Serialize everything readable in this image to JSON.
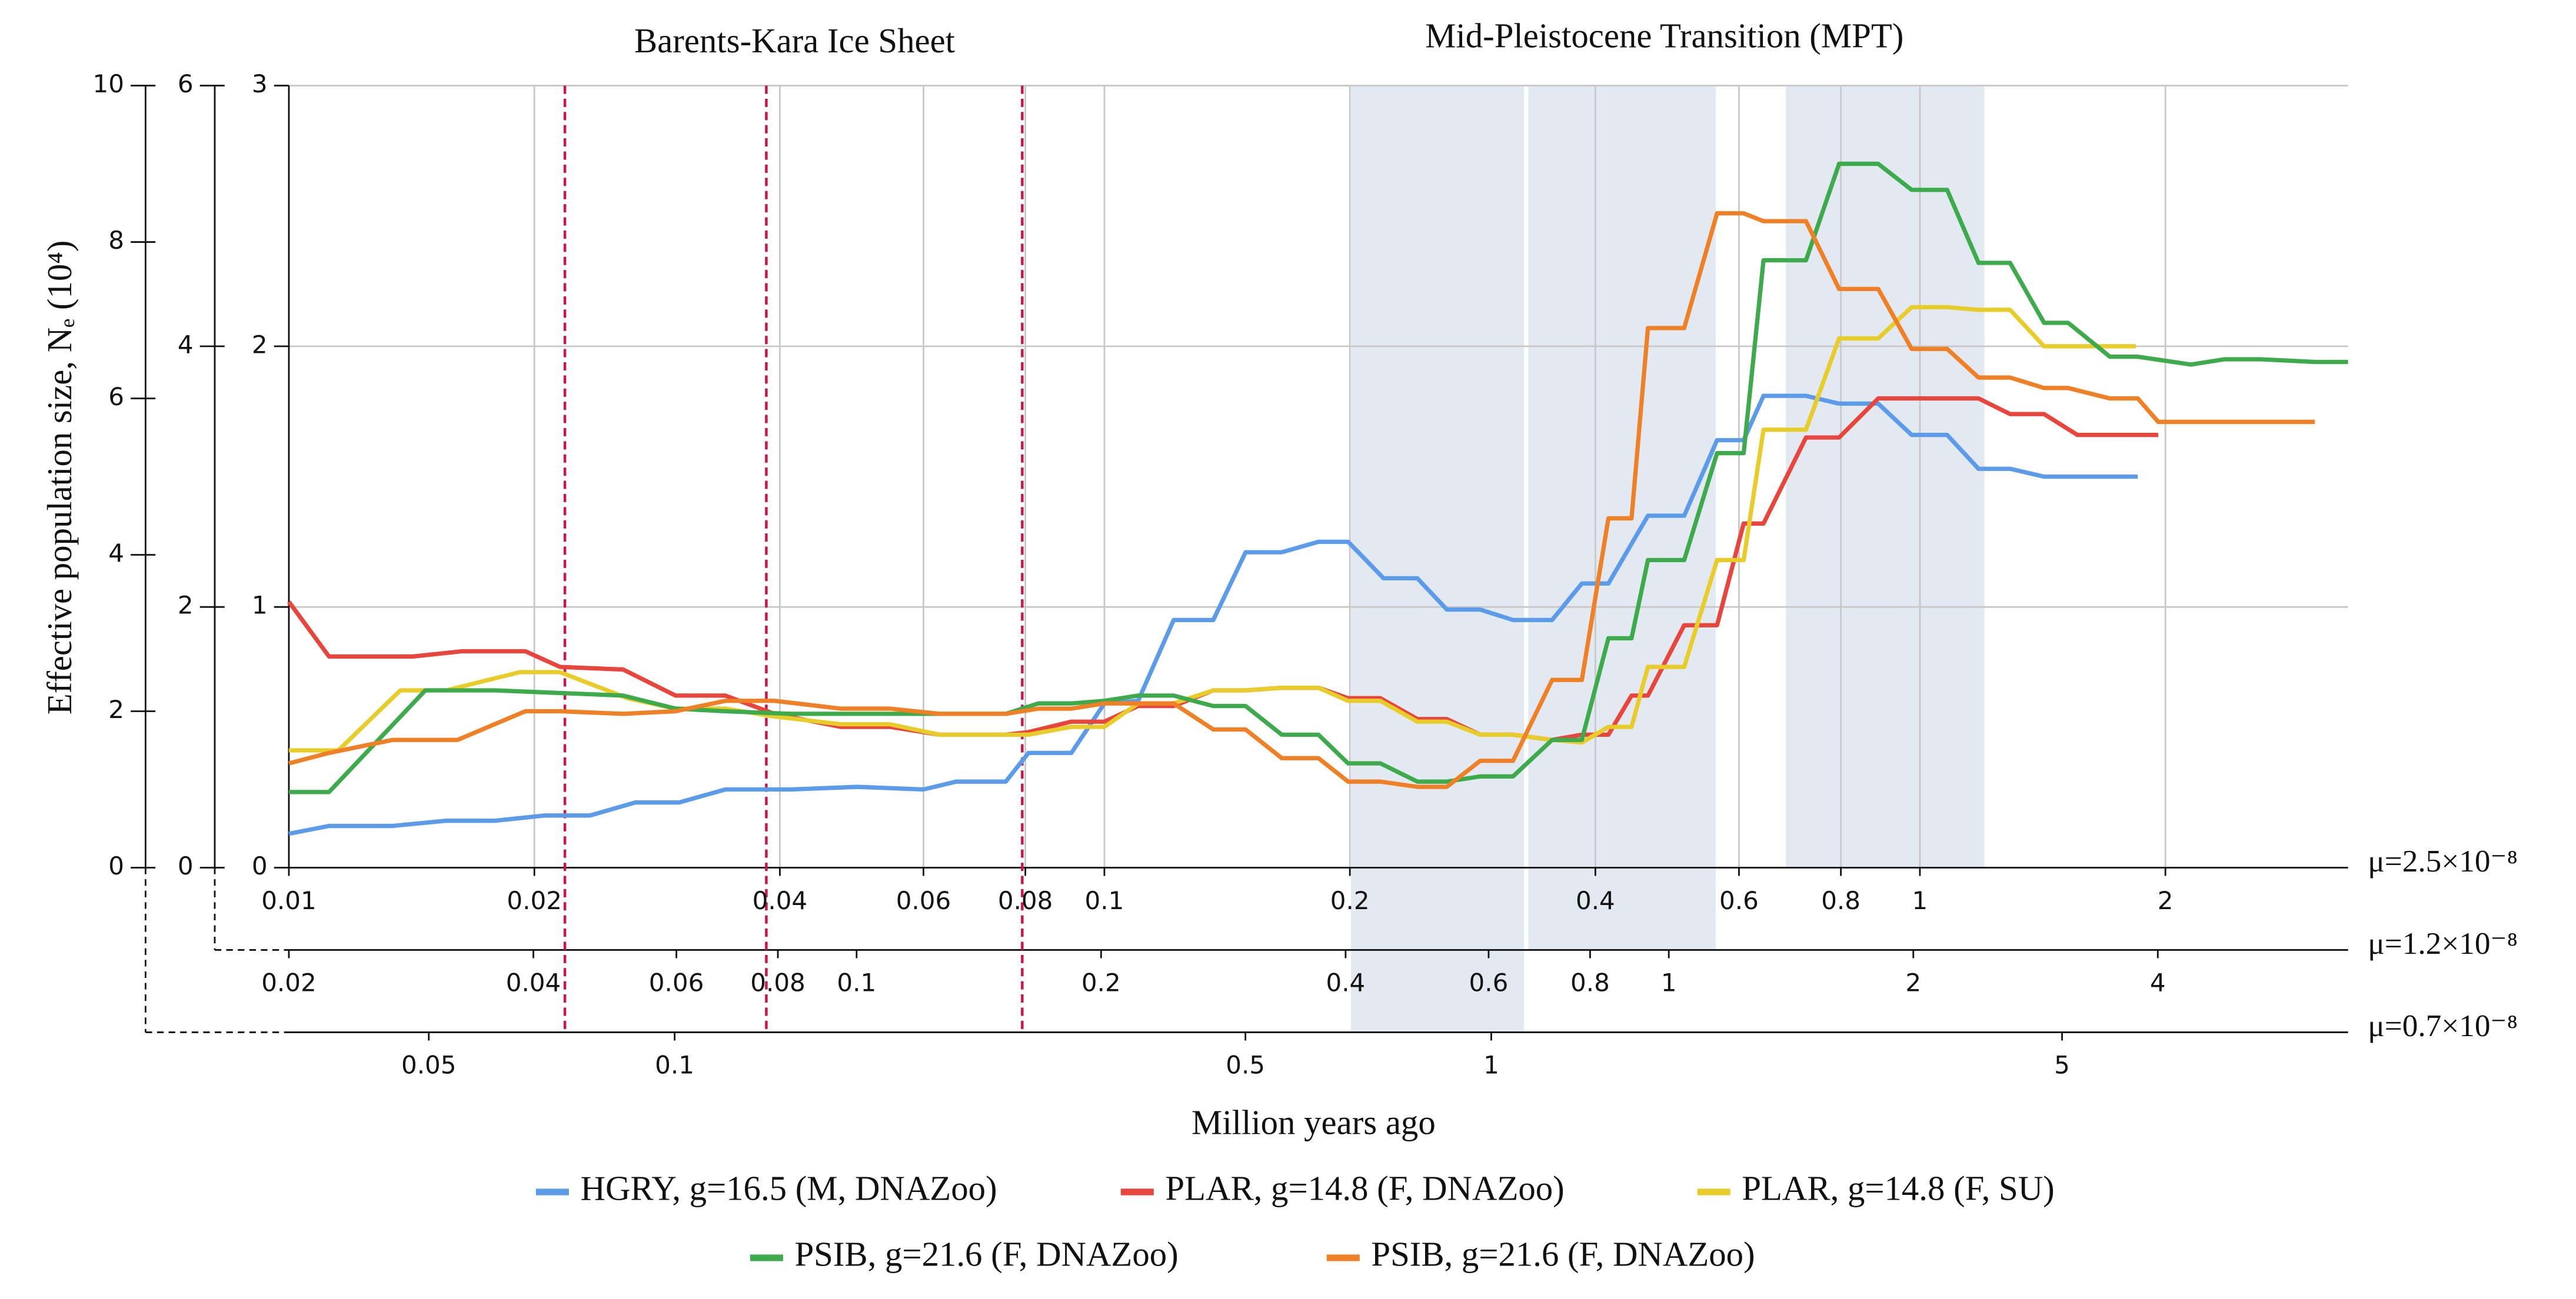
{
  "chart_data": {
    "type": "line",
    "xscale": "log",
    "grid": true,
    "annotations": [
      "Barents-Kara Ice Sheet",
      "Mid-Pleistocene Transition (MPT)"
    ],
    "xlabel": "Million years ago",
    "ylabel": "Effective population size, Nₑ (10⁴)",
    "x_axes": [
      {
        "label": "μ=2.5×10⁻⁸",
        "xlim": [
          0.01,
          3.35
        ],
        "xticks": [
          0.01,
          0.02,
          0.04,
          0.06,
          0.08,
          0.1,
          0.2,
          0.4,
          0.6,
          0.8,
          1,
          2
        ]
      },
      {
        "label": "μ=1.2×10⁻⁸",
        "xlim": [
          0.02,
          6.86
        ],
        "xticks": [
          0.02,
          0.04,
          0.06,
          0.08,
          0.1,
          0.2,
          0.4,
          0.6,
          0.8,
          1,
          2,
          4
        ]
      },
      {
        "label": "μ=0.7×10⁻⁸",
        "xlim": [
          0.0337,
          11.2
        ],
        "xticks": [
          0.05,
          0.1,
          0.5,
          1,
          5
        ]
      }
    ],
    "y_axes": [
      {
        "ylim": [
          0,
          3
        ],
        "yticks": [
          0,
          1,
          2,
          3
        ]
      },
      {
        "ylim": [
          0,
          6
        ],
        "yticks": [
          0,
          2,
          4,
          6
        ]
      },
      {
        "ylim": [
          0,
          10
        ],
        "yticks": [
          0,
          2,
          4,
          6,
          8,
          10
        ]
      }
    ],
    "bands": [
      [
        0.2006,
        0.327
      ],
      [
        0.331,
        0.562
      ],
      [
        0.685,
        1.2
      ]
    ],
    "band_color": "#e3e9f1",
    "vlines": [
      0.0218,
      0.0385,
      0.0793
    ],
    "vline_color": "#c8154a",
    "series": [
      {
        "name": "HGRY, g=16.5 (M, DNAZoo)",
        "color": "#5b9bea",
        "x": [
          0.01,
          0.0112,
          0.0134,
          0.0156,
          0.0179,
          0.0206,
          0.0234,
          0.0266,
          0.0301,
          0.0343,
          0.0413,
          0.0498,
          0.06,
          0.0658,
          0.0757,
          0.0807,
          0.0911,
          0.1,
          0.11,
          0.1216,
          0.136,
          0.149,
          0.165,
          0.183,
          0.199,
          0.22,
          0.242,
          0.263,
          0.289,
          0.317,
          0.354,
          0.385,
          0.415,
          0.464,
          0.514,
          0.564,
          0.608,
          0.643,
          0.725,
          0.796,
          0.889,
          0.977,
          1.08,
          1.18,
          1.29,
          1.42,
          1.85
        ],
        "values": [
          0.13,
          0.16,
          0.16,
          0.18,
          0.18,
          0.2,
          0.2,
          0.25,
          0.25,
          0.3,
          0.3,
          0.31,
          0.3,
          0.33,
          0.33,
          0.44,
          0.44,
          0.63,
          0.64,
          0.95,
          0.95,
          1.21,
          1.21,
          1.25,
          1.25,
          1.11,
          1.11,
          0.99,
          0.99,
          0.95,
          0.95,
          1.09,
          1.09,
          1.35,
          1.35,
          1.64,
          1.64,
          1.81,
          1.81,
          1.78,
          1.78,
          1.66,
          1.66,
          1.53,
          1.53,
          1.5,
          1.5
        ]
      },
      {
        "name": "PLAR, g=14.8 (F, DNAZoo)",
        "color": "#e8453c",
        "x": [
          0.01,
          0.0112,
          0.0142,
          0.0163,
          0.0195,
          0.0215,
          0.0257,
          0.0298,
          0.0343,
          0.0394,
          0.0475,
          0.0546,
          0.0628,
          0.0757,
          0.0807,
          0.0911,
          0.1,
          0.11,
          0.1216,
          0.136,
          0.149,
          0.165,
          0.183,
          0.199,
          0.218,
          0.242,
          0.263,
          0.289,
          0.317,
          0.354,
          0.385,
          0.415,
          0.443,
          0.464,
          0.514,
          0.564,
          0.608,
          0.643,
          0.725,
          0.796,
          0.889,
          0.977,
          1.08,
          1.18,
          1.29,
          1.42,
          1.56,
          1.96
        ],
        "values": [
          1.02,
          0.81,
          0.81,
          0.83,
          0.83,
          0.77,
          0.76,
          0.66,
          0.66,
          0.59,
          0.54,
          0.54,
          0.51,
          0.51,
          0.52,
          0.56,
          0.56,
          0.62,
          0.62,
          0.68,
          0.68,
          0.69,
          0.69,
          0.65,
          0.65,
          0.57,
          0.57,
          0.51,
          0.51,
          0.49,
          0.51,
          0.51,
          0.66,
          0.66,
          0.93,
          0.93,
          1.32,
          1.32,
          1.65,
          1.65,
          1.8,
          1.8,
          1.8,
          1.8,
          1.74,
          1.74,
          1.66,
          1.66
        ]
      },
      {
        "name": "PLAR, g=14.8 (F, SU)",
        "color": "#e8cc2a",
        "x": [
          0.01,
          0.0115,
          0.0137,
          0.0156,
          0.0192,
          0.0215,
          0.026,
          0.0298,
          0.0343,
          0.0394,
          0.0475,
          0.0546,
          0.0628,
          0.0757,
          0.0807,
          0.0911,
          0.1,
          0.11,
          0.1216,
          0.136,
          0.149,
          0.165,
          0.183,
          0.199,
          0.218,
          0.242,
          0.263,
          0.289,
          0.317,
          0.354,
          0.385,
          0.415,
          0.443,
          0.464,
          0.514,
          0.564,
          0.608,
          0.643,
          0.725,
          0.796,
          0.889,
          0.977,
          1.08,
          1.18,
          1.29,
          1.42,
          1.84
        ],
        "values": [
          0.45,
          0.45,
          0.68,
          0.68,
          0.75,
          0.75,
          0.65,
          0.61,
          0.61,
          0.58,
          0.55,
          0.55,
          0.51,
          0.51,
          0.51,
          0.54,
          0.54,
          0.63,
          0.63,
          0.68,
          0.68,
          0.69,
          0.69,
          0.64,
          0.64,
          0.56,
          0.56,
          0.51,
          0.51,
          0.49,
          0.48,
          0.54,
          0.54,
          0.77,
          0.77,
          1.18,
          1.18,
          1.68,
          1.68,
          2.03,
          2.03,
          2.15,
          2.15,
          2.14,
          2.14,
          2.0,
          2.0
        ]
      },
      {
        "name": "PSIB, g=21.6 (F, DNAZoo)",
        "color": "#3daa4c",
        "x": [
          0.01,
          0.0112,
          0.0147,
          0.0179,
          0.0215,
          0.0257,
          0.0298,
          0.0343,
          0.0413,
          0.0498,
          0.06,
          0.0757,
          0.083,
          0.0911,
          0.1,
          0.11,
          0.1216,
          0.136,
          0.149,
          0.165,
          0.183,
          0.199,
          0.218,
          0.242,
          0.263,
          0.289,
          0.317,
          0.354,
          0.385,
          0.415,
          0.443,
          0.464,
          0.514,
          0.564,
          0.608,
          0.643,
          0.725,
          0.796,
          0.889,
          0.977,
          1.08,
          1.18,
          1.29,
          1.42,
          1.52,
          1.71,
          1.85,
          2.15,
          2.36,
          2.62,
          3.05,
          3.35
        ],
        "values": [
          0.29,
          0.29,
          0.68,
          0.68,
          0.67,
          0.66,
          0.61,
          0.6,
          0.59,
          0.59,
          0.59,
          0.59,
          0.63,
          0.63,
          0.64,
          0.66,
          0.66,
          0.62,
          0.62,
          0.51,
          0.51,
          0.4,
          0.4,
          0.33,
          0.33,
          0.35,
          0.35,
          0.49,
          0.49,
          0.88,
          0.88,
          1.18,
          1.18,
          1.59,
          1.59,
          2.33,
          2.33,
          2.7,
          2.7,
          2.6,
          2.6,
          2.32,
          2.32,
          2.09,
          2.09,
          1.96,
          1.96,
          1.93,
          1.95,
          1.95,
          1.94,
          1.94
        ]
      },
      {
        "name": "PSIB, g=21.6 (F, DNAZoo)",
        "color": "#f08026",
        "x": [
          0.01,
          0.0112,
          0.0134,
          0.0161,
          0.0195,
          0.0215,
          0.0257,
          0.0298,
          0.0343,
          0.0394,
          0.0475,
          0.0546,
          0.0628,
          0.0757,
          0.083,
          0.0911,
          0.1,
          0.11,
          0.1216,
          0.136,
          0.149,
          0.165,
          0.183,
          0.199,
          0.218,
          0.242,
          0.263,
          0.289,
          0.317,
          0.354,
          0.385,
          0.415,
          0.443,
          0.464,
          0.514,
          0.564,
          0.608,
          0.643,
          0.725,
          0.796,
          0.889,
          0.977,
          1.08,
          1.18,
          1.29,
          1.42,
          1.52,
          1.71,
          1.85,
          1.96,
          2.36,
          3.05
        ],
        "values": [
          0.4,
          0.44,
          0.49,
          0.49,
          0.6,
          0.6,
          0.59,
          0.6,
          0.64,
          0.64,
          0.61,
          0.61,
          0.59,
          0.59,
          0.61,
          0.61,
          0.63,
          0.63,
          0.63,
          0.53,
          0.53,
          0.42,
          0.42,
          0.33,
          0.33,
          0.31,
          0.31,
          0.41,
          0.41,
          0.72,
          0.72,
          1.34,
          1.34,
          2.07,
          2.07,
          2.51,
          2.51,
          2.48,
          2.48,
          2.22,
          2.22,
          1.99,
          1.99,
          1.88,
          1.88,
          1.84,
          1.84,
          1.8,
          1.8,
          1.71,
          1.71,
          1.71
        ]
      }
    ]
  }
}
